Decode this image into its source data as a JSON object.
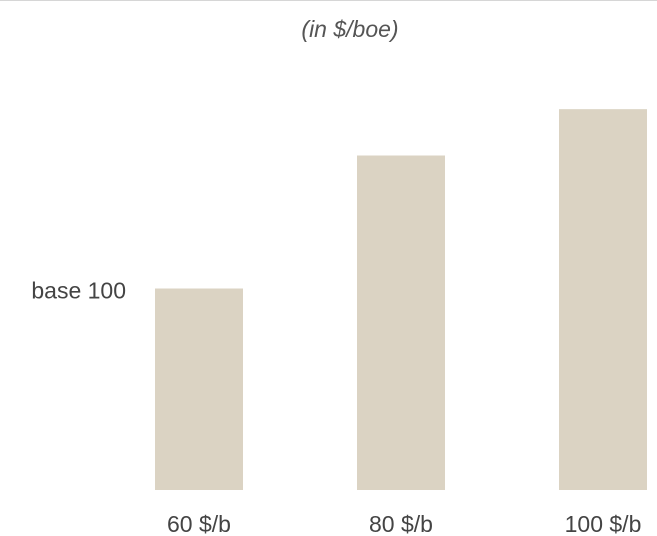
{
  "chart_data": {
    "type": "bar",
    "title": "",
    "subtitle": "(in $/boe)",
    "categories": [
      "60 $/b",
      "80 $/b",
      "100 $/b"
    ],
    "values": [
      100,
      166,
      189
    ],
    "ylabel": "",
    "xlabel": "",
    "ylim": [
      0,
      200
    ],
    "reference_label": {
      "text": "base 100",
      "value": 100
    },
    "bar_color": "#dbd3c3",
    "grid": false,
    "legend": "none"
  }
}
